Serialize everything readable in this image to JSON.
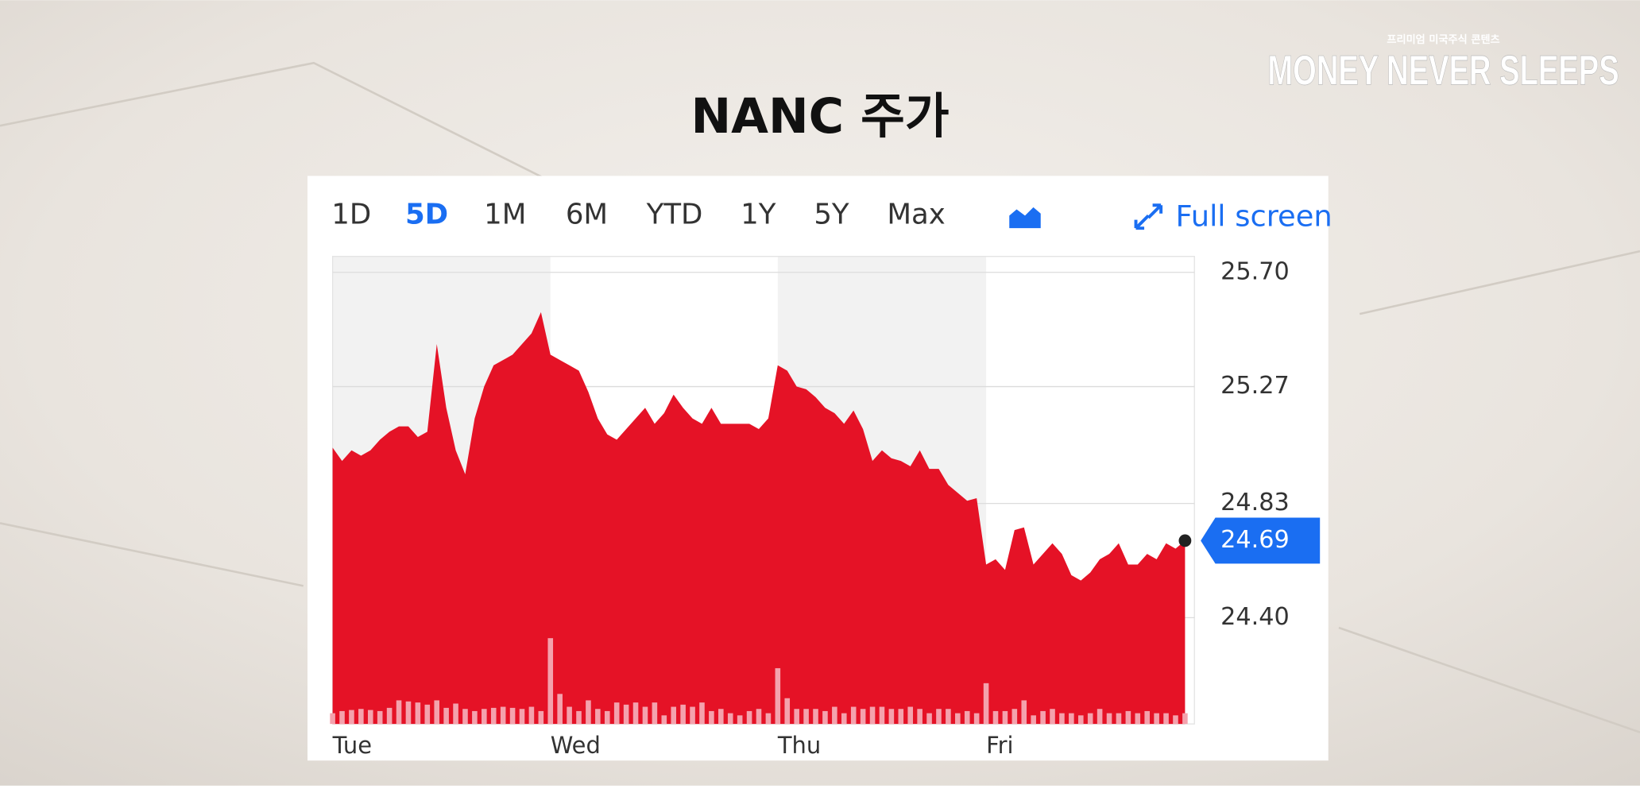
{
  "brand": {
    "tagline": "프리미엄 미국주식 콘텐츠",
    "name": "MONEY NEVER SLEEPS"
  },
  "chart_data": {
    "type": "area",
    "title": "NANC 주가",
    "ranges": [
      "1D",
      "5D",
      "1M",
      "6M",
      "YTD",
      "1Y",
      "5Y",
      "Max"
    ],
    "selected_range": "5D",
    "fullscreen": "Full screen",
    "categories": [
      "Tue",
      "Wed",
      "Thu",
      "Fri"
    ],
    "values": [
      [
        25.04,
        24.99,
        25.03,
        25.01,
        25.03,
        25.07,
        25.1,
        25.12,
        25.12,
        25.08,
        25.1,
        25.43,
        25.19,
        25.03,
        24.94,
        25.15,
        25.27,
        25.35,
        25.37,
        25.39,
        25.43,
        25.47,
        25.55
      ],
      [
        25.39,
        25.37,
        25.35,
        25.33,
        25.25,
        25.15,
        25.09,
        25.07,
        25.11,
        25.15,
        25.19,
        25.13,
        25.17,
        25.24,
        25.19,
        25.15,
        25.13,
        25.19,
        25.13,
        25.13,
        25.13,
        25.13,
        25.11,
        25.15
      ],
      [
        25.35,
        25.33,
        25.27,
        25.26,
        25.23,
        25.19,
        25.17,
        25.13,
        25.18,
        25.11,
        24.99,
        25.03,
        25.0,
        24.99,
        24.97,
        25.03,
        24.96,
        24.96,
        24.9,
        24.87,
        24.84,
        24.85
      ],
      [
        24.6,
        24.62,
        24.58,
        24.73,
        24.74,
        24.6,
        24.64,
        24.68,
        24.64,
        24.56,
        24.54,
        24.57,
        24.62,
        24.64,
        24.68,
        24.6,
        24.6,
        24.64,
        24.62,
        24.68,
        24.66,
        24.69
      ]
    ],
    "volume": [
      [
        10,
        12,
        13,
        14,
        13,
        12,
        15,
        22,
        21,
        20,
        18,
        22,
        15,
        19,
        14,
        12,
        14,
        15,
        16,
        15,
        14,
        16,
        12
      ],
      [
        80,
        28,
        16,
        12,
        22,
        14,
        12,
        20,
        18,
        20,
        16,
        20,
        8,
        16,
        18,
        16,
        20,
        12,
        14,
        10,
        8,
        12,
        14,
        10
      ],
      [
        52,
        24,
        14,
        14,
        14,
        12,
        16,
        10,
        16,
        14,
        16,
        16,
        14,
        14,
        16,
        14,
        10,
        14,
        14,
        10,
        12,
        10
      ],
      [
        38,
        12,
        12,
        14,
        22,
        8,
        12,
        14,
        10,
        10,
        8,
        10,
        14,
        10,
        10,
        12,
        10,
        12,
        10,
        10,
        8,
        10
      ]
    ],
    "color": "#e51226",
    "volume_color": "#f4a2ad",
    "last_color": "#1a6ef2",
    "ylim": [
      24.0,
      25.76
    ],
    "yticks": [
      {
        "value": 25.7,
        "label": "25.70"
      },
      25.27,
      24.83,
      {
        "value": 24.4,
        "label": "24.40"
      }
    ],
    "grid": true
  }
}
